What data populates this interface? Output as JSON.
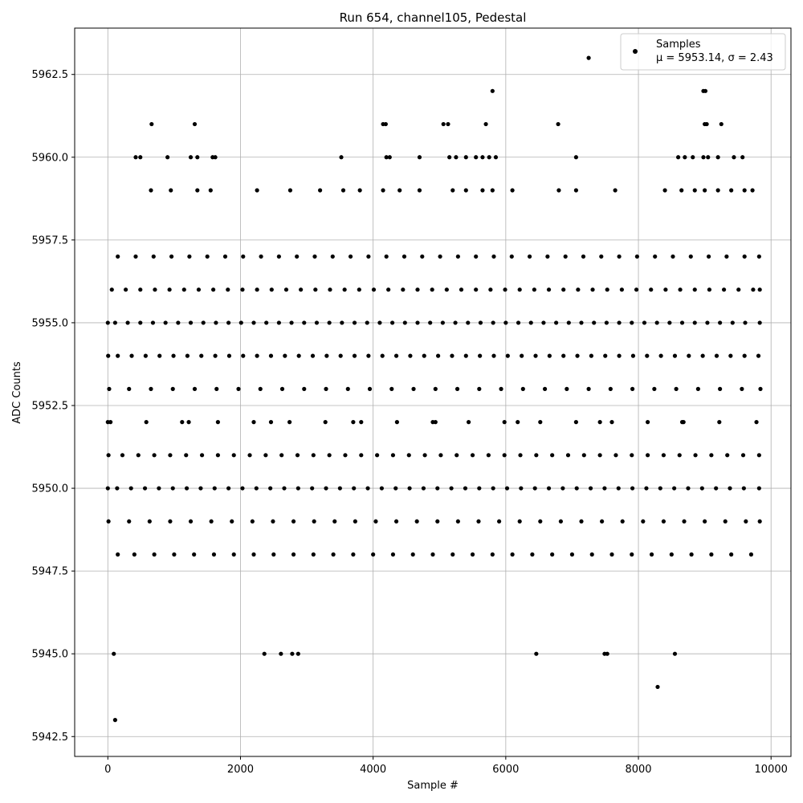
{
  "chart_data": {
    "type": "scatter",
    "title": "Run 654, channel105, Pedestal",
    "xlabel": "Sample #",
    "ylabel": "ADC Counts",
    "xlim": [
      -500,
      10300
    ],
    "ylim": [
      5941.9,
      5963.9
    ],
    "x_ticks": [
      0,
      2000,
      4000,
      6000,
      8000,
      10000
    ],
    "x_tick_labels": [
      "0",
      "2000",
      "4000",
      "6000",
      "8000",
      "10000"
    ],
    "y_ticks": [
      5942.5,
      5945.0,
      5947.5,
      5950.0,
      5952.5,
      5955.0,
      5957.5,
      5960.0,
      5962.5
    ],
    "y_tick_labels": [
      "5942.5",
      "5945.0",
      "5947.5",
      "5950.0",
      "5952.5",
      "5955.0",
      "5957.5",
      "5960.0",
      "5962.5"
    ],
    "grid": true,
    "legend_position": "top-right",
    "marker_color": "#000000",
    "series": [
      {
        "name": "Samples",
        "label_line2": "μ = 5953.14, σ = 2.43",
        "x": [
          0,
          1220,
          2460,
          3700,
          4940,
          6180,
          7420,
          8660,
          40,
          580,
          1120,
          1660,
          2200,
          2740,
          3280,
          3820,
          4360,
          4900,
          5440,
          5980,
          6520,
          7060,
          7600,
          8140,
          8680,
          9220,
          9780,
          20,
          320,
          650,
          980,
          1310,
          1640,
          1970,
          2300,
          2630,
          2960,
          3290,
          3620,
          3950,
          4280,
          4610,
          4940,
          5270,
          5600,
          5930,
          6260,
          6590,
          6920,
          7250,
          7580,
          7910,
          8240,
          8570,
          8900,
          9230,
          9560,
          9840,
          10,
          220,
          460,
          700,
          940,
          1180,
          1420,
          1660,
          1900,
          2140,
          2380,
          2620,
          2860,
          3100,
          3340,
          3580,
          3820,
          4060,
          4300,
          4540,
          4780,
          5020,
          5260,
          5500,
          5740,
          5980,
          6220,
          6460,
          6700,
          6940,
          7180,
          7420,
          7660,
          7900,
          8140,
          8380,
          8620,
          8860,
          9100,
          9340,
          9580,
          9820,
          5,
          150,
          360,
          570,
          780,
          990,
          1200,
          1410,
          1620,
          1830,
          2040,
          2250,
          2460,
          2670,
          2880,
          3090,
          3300,
          3510,
          3720,
          3930,
          4140,
          4350,
          4560,
          4770,
          4980,
          5190,
          5400,
          5610,
          5820,
          6030,
          6240,
          6450,
          6660,
          6870,
          7080,
          7290,
          7500,
          7710,
          7920,
          8130,
          8340,
          8550,
          8760,
          8970,
          9180,
          9390,
          9600,
          9810,
          0,
          110,
          300,
          490,
          680,
          870,
          1060,
          1250,
          1440,
          1630,
          1820,
          2010,
          2200,
          2390,
          2580,
          2770,
          2960,
          3150,
          3340,
          3530,
          3720,
          3910,
          4100,
          4290,
          4480,
          4670,
          4860,
          5050,
          5240,
          5430,
          5620,
          5810,
          6000,
          6190,
          6380,
          6570,
          6760,
          6950,
          7140,
          7330,
          7520,
          7710,
          7900,
          8090,
          8280,
          8470,
          8660,
          8850,
          9040,
          9230,
          9420,
          9610,
          9830,
          0,
          140,
          350,
          560,
          770,
          980,
          1190,
          1400,
          1610,
          1820,
          2030,
          2240,
          2450,
          2660,
          2870,
          3080,
          3290,
          3500,
          3710,
          3920,
          4130,
          4340,
          4550,
          4760,
          4970,
          5180,
          5390,
          5600,
          5810,
          6020,
          6230,
          6440,
          6650,
          6860,
          7070,
          7280,
          7490,
          7700,
          7910,
          8120,
          8330,
          8540,
          8750,
          8960,
          9170,
          9380,
          9590,
          9820,
          60,
          270,
          490,
          710,
          930,
          1150,
          1370,
          1590,
          1810,
          2030,
          2250,
          2470,
          2690,
          2910,
          3130,
          3350,
          3570,
          3790,
          4010,
          4230,
          4450,
          4670,
          4890,
          5110,
          5330,
          5550,
          5770,
          5990,
          6210,
          6430,
          6650,
          6870,
          7090,
          7310,
          7530,
          7750,
          7970,
          8190,
          8410,
          8630,
          8850,
          9070,
          9290,
          9510,
          9730,
          9830,
          10,
          320,
          630,
          940,
          1250,
          1560,
          1870,
          2180,
          2490,
          2800,
          3110,
          3420,
          3730,
          4040,
          4350,
          4660,
          4970,
          5280,
          5590,
          5900,
          6210,
          6520,
          6830,
          7140,
          7450,
          7760,
          8070,
          8380,
          8690,
          9000,
          9310,
          9620,
          9830,
          150,
          420,
          690,
          960,
          1230,
          1500,
          1770,
          2040,
          2310,
          2580,
          2850,
          3120,
          3390,
          3660,
          3930,
          4200,
          4470,
          4740,
          5010,
          5280,
          5550,
          5820,
          6090,
          6360,
          6630,
          6900,
          7170,
          7440,
          7710,
          7980,
          8250,
          8520,
          8790,
          9060,
          9330,
          9600,
          9820,
          150,
          400,
          700,
          1000,
          1300,
          1600,
          1900,
          2200,
          2500,
          2800,
          3100,
          3400,
          3700,
          4000,
          4300,
          4600,
          4900,
          5200,
          5500,
          5800,
          6100,
          6400,
          6700,
          7000,
          7300,
          7600,
          7900,
          8200,
          8500,
          8800,
          9100,
          9400,
          9700,
          650,
          950,
          1350,
          1550,
          2250,
          2750,
          3200,
          3550,
          3800,
          4150,
          4400,
          4700,
          5200,
          5400,
          5650,
          5800,
          6100,
          6800,
          7060,
          7650,
          8400,
          8650,
          8850,
          9000,
          9200,
          9400,
          9600,
          9720,
          420,
          490,
          900,
          1250,
          1350,
          1580,
          1620,
          3520,
          4200,
          4250,
          4700,
          5150,
          5250,
          5400,
          5550,
          5650,
          5750,
          5850,
          7060,
          8600,
          8700,
          8820,
          8980,
          9050,
          9200,
          9440,
          9570,
          660,
          1310,
          4150,
          4190,
          5060,
          5130,
          5700,
          6790,
          9000,
          9030,
          9250,
          5800,
          8980,
          9010,
          7250,
          90,
          2360,
          2610,
          2780,
          2870,
          6460,
          7490,
          7530,
          8550,
          8290,
          110
        ],
        "y": [
          5952,
          5952,
          5952,
          5952,
          5952,
          5952,
          5952,
          5952,
          5952,
          5952,
          5952,
          5952,
          5952,
          5952,
          5952,
          5952,
          5952,
          5952,
          5952,
          5952,
          5952,
          5952,
          5952,
          5952,
          5952,
          5952,
          5952,
          5953,
          5953,
          5953,
          5953,
          5953,
          5953,
          5953,
          5953,
          5953,
          5953,
          5953,
          5953,
          5953,
          5953,
          5953,
          5953,
          5953,
          5953,
          5953,
          5953,
          5953,
          5953,
          5953,
          5953,
          5953,
          5953,
          5953,
          5953,
          5953,
          5953,
          5953,
          5951,
          5951,
          5951,
          5951,
          5951,
          5951,
          5951,
          5951,
          5951,
          5951,
          5951,
          5951,
          5951,
          5951,
          5951,
          5951,
          5951,
          5951,
          5951,
          5951,
          5951,
          5951,
          5951,
          5951,
          5951,
          5951,
          5951,
          5951,
          5951,
          5951,
          5951,
          5951,
          5951,
          5951,
          5951,
          5951,
          5951,
          5951,
          5951,
          5951,
          5951,
          5951,
          5954,
          5954,
          5954,
          5954,
          5954,
          5954,
          5954,
          5954,
          5954,
          5954,
          5954,
          5954,
          5954,
          5954,
          5954,
          5954,
          5954,
          5954,
          5954,
          5954,
          5954,
          5954,
          5954,
          5954,
          5954,
          5954,
          5954,
          5954,
          5954,
          5954,
          5954,
          5954,
          5954,
          5954,
          5954,
          5954,
          5954,
          5954,
          5954,
          5954,
          5954,
          5954,
          5954,
          5954,
          5954,
          5954,
          5954,
          5954,
          5955,
          5955,
          5955,
          5955,
          5955,
          5955,
          5955,
          5955,
          5955,
          5955,
          5955,
          5955,
          5955,
          5955,
          5955,
          5955,
          5955,
          5955,
          5955,
          5955,
          5955,
          5955,
          5955,
          5955,
          5955,
          5955,
          5955,
          5955,
          5955,
          5955,
          5955,
          5955,
          5955,
          5955,
          5955,
          5955,
          5955,
          5955,
          5955,
          5955,
          5955,
          5955,
          5955,
          5955,
          5955,
          5955,
          5955,
          5955,
          5955,
          5955,
          5955,
          5955,
          5955,
          5950,
          5950,
          5950,
          5950,
          5950,
          5950,
          5950,
          5950,
          5950,
          5950,
          5950,
          5950,
          5950,
          5950,
          5950,
          5950,
          5950,
          5950,
          5950,
          5950,
          5950,
          5950,
          5950,
          5950,
          5950,
          5950,
          5950,
          5950,
          5950,
          5950,
          5950,
          5950,
          5950,
          5950,
          5950,
          5950,
          5950,
          5950,
          5950,
          5950,
          5950,
          5950,
          5950,
          5950,
          5950,
          5950,
          5950,
          5950,
          5956,
          5956,
          5956,
          5956,
          5956,
          5956,
          5956,
          5956,
          5956,
          5956,
          5956,
          5956,
          5956,
          5956,
          5956,
          5956,
          5956,
          5956,
          5956,
          5956,
          5956,
          5956,
          5956,
          5956,
          5956,
          5956,
          5956,
          5956,
          5956,
          5956,
          5956,
          5956,
          5956,
          5956,
          5956,
          5956,
          5956,
          5956,
          5956,
          5956,
          5956,
          5956,
          5956,
          5956,
          5956,
          5956,
          5949,
          5949,
          5949,
          5949,
          5949,
          5949,
          5949,
          5949,
          5949,
          5949,
          5949,
          5949,
          5949,
          5949,
          5949,
          5949,
          5949,
          5949,
          5949,
          5949,
          5949,
          5949,
          5949,
          5949,
          5949,
          5949,
          5949,
          5949,
          5949,
          5949,
          5949,
          5949,
          5949,
          5957,
          5957,
          5957,
          5957,
          5957,
          5957,
          5957,
          5957,
          5957,
          5957,
          5957,
          5957,
          5957,
          5957,
          5957,
          5957,
          5957,
          5957,
          5957,
          5957,
          5957,
          5957,
          5957,
          5957,
          5957,
          5957,
          5957,
          5957,
          5957,
          5957,
          5957,
          5957,
          5957,
          5957,
          5957,
          5957,
          5957,
          5948,
          5948,
          5948,
          5948,
          5948,
          5948,
          5948,
          5948,
          5948,
          5948,
          5948,
          5948,
          5948,
          5948,
          5948,
          5948,
          5948,
          5948,
          5948,
          5948,
          5948,
          5948,
          5948,
          5948,
          5948,
          5948,
          5948,
          5948,
          5948,
          5948,
          5948,
          5948,
          5948,
          5959,
          5959,
          5959,
          5959,
          5959,
          5959,
          5959,
          5959,
          5959,
          5959,
          5959,
          5959,
          5959,
          5959,
          5959,
          5959,
          5959,
          5959,
          5959,
          5959,
          5959,
          5959,
          5959,
          5959,
          5959,
          5959,
          5959,
          5959,
          5960,
          5960,
          5960,
          5960,
          5960,
          5960,
          5960,
          5960,
          5960,
          5960,
          5960,
          5960,
          5960,
          5960,
          5960,
          5960,
          5960,
          5960,
          5960,
          5960,
          5960,
          5960,
          5960,
          5960,
          5960,
          5960,
          5960,
          5961,
          5961,
          5961,
          5961,
          5961,
          5961,
          5961,
          5961,
          5961,
          5961,
          5961,
          5962,
          5962,
          5962,
          5963,
          5945,
          5945,
          5945,
          5945,
          5945,
          5945,
          5945,
          5945,
          5945,
          5944,
          5943
        ]
      }
    ]
  }
}
